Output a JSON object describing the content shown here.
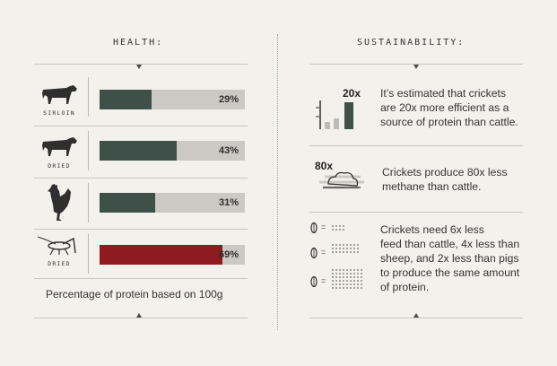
{
  "health": {
    "title": "HEALTH:",
    "rows": [
      {
        "label": "SIRLOIN",
        "icon": "cow-icon",
        "percent": 29,
        "text": "29%",
        "color": "#3f4f4a"
      },
      {
        "label": "DRIED",
        "icon": "cow-icon",
        "percent": 43,
        "text": "43%",
        "color": "#3f4f4a"
      },
      {
        "label": "",
        "icon": "rooster-icon",
        "percent": 31,
        "text": "31%",
        "color": "#3f4f4a"
      },
      {
        "label": "DRIED",
        "icon": "cricket-icon",
        "percent": 69,
        "text": "69%",
        "color": "#8d1b1f"
      }
    ],
    "caption": "Percentage of protein based on 100g"
  },
  "sustainability": {
    "title": "SUSTAINABILITY:",
    "item1": {
      "big": "20x",
      "text_lines": [
        "It’s estimated that crickets",
        "are 20x more efficient as a",
        "source of protein than cattle."
      ]
    },
    "item2": {
      "big": "80x",
      "text_lines": [
        "Crickets produce 80x less",
        "methane than cattle."
      ]
    },
    "item3": {
      "eq": "=",
      "text_lines": [
        "Crickets need 6x less",
        "feed than cattle, 4x less than",
        "sheep, and 2x less than pigs",
        "to produce the same amount",
        "of protein."
      ]
    }
  }
}
